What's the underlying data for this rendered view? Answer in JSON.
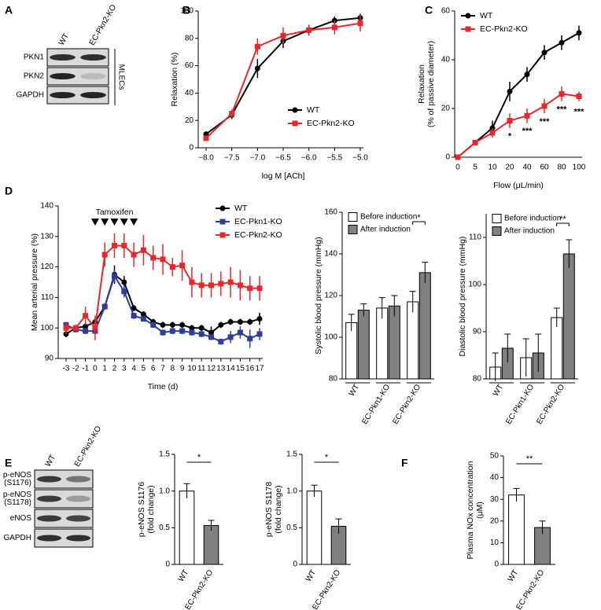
{
  "chart_data": [
    {
      "panel": "B",
      "type": "line",
      "ylabel": "Relaxation (%)",
      "xlabel": "log M [ACh]",
      "x": [
        -8,
        -7.5,
        -7,
        -6.5,
        -6,
        -5.5,
        -5
      ],
      "xlim": [
        -8,
        -5
      ],
      "xticks": [
        {
          "value": -8,
          "label": "−8.0"
        },
        {
          "value": -7.5,
          "label": "−7.5"
        },
        {
          "value": -7,
          "label": "−7.0"
        },
        {
          "value": -6.5,
          "label": "−6.5"
        },
        {
          "value": -6,
          "label": "−6.0"
        },
        {
          "value": -5.5,
          "label": "−5.5"
        },
        {
          "value": -5,
          "label": "−5.0"
        }
      ],
      "ylim": [
        0,
        100
      ],
      "yticks": [
        0,
        20,
        40,
        60,
        80,
        100
      ],
      "legend_loc": "lower right",
      "series": [
        {
          "name": "WT",
          "color": "#000000",
          "marker": "circle",
          "values": [
            10,
            24,
            58,
            78,
            86,
            93,
            95
          ],
          "errors": [
            1,
            3,
            7,
            5,
            4,
            3,
            3
          ]
        },
        {
          "name": "EC-Pkn2-KO",
          "color": "#e8262b",
          "marker": "square",
          "values": [
            7,
            25,
            74,
            82,
            86,
            88,
            91
          ],
          "errors": [
            2,
            3,
            6,
            6,
            4,
            5,
            6
          ]
        }
      ]
    },
    {
      "panel": "C",
      "type": "line",
      "ylabel": [
        "Relaxation",
        "(% of passive diameter)"
      ],
      "xlabel": "Flow (μL/min)",
      "categories": [
        "0",
        "5",
        "10",
        "20",
        "40",
        "60",
        "80",
        "100"
      ],
      "ylim": [
        0,
        60
      ],
      "yticks": [
        0,
        20,
        40,
        60
      ],
      "legend_loc": "upper left",
      "star_labels": [
        null,
        null,
        null,
        "*",
        "***",
        "***",
        "***",
        "***"
      ],
      "series": [
        {
          "name": "WT",
          "color": "#000000",
          "marker": "circle",
          "values": [
            0,
            6,
            12,
            27,
            34,
            43,
            47,
            51
          ],
          "errors": [
            0,
            1,
            3,
            4,
            3,
            3,
            3,
            3
          ]
        },
        {
          "name": "EC-Pkn2-KO",
          "color": "#e8262b",
          "marker": "square",
          "values": [
            0,
            6,
            10,
            15,
            17,
            21,
            26,
            25
          ],
          "errors": [
            0,
            1,
            2,
            3,
            3,
            3,
            3,
            2
          ]
        }
      ]
    },
    {
      "panel": "D",
      "type": "line",
      "ylabel": "Mean arterial pressure (%)",
      "xlabel": "Time (d)",
      "x": [
        -3,
        -2,
        -1,
        0,
        1,
        2,
        3,
        4,
        5,
        6,
        7,
        8,
        9,
        10,
        11,
        12,
        13,
        14,
        15,
        16,
        17
      ],
      "xlim": [
        -3,
        17
      ],
      "xticks": [
        -3,
        -2,
        -1,
        0,
        1,
        2,
        3,
        4,
        5,
        6,
        7,
        8,
        9,
        10,
        11,
        12,
        13,
        14,
        15,
        16,
        17
      ],
      "ylim": [
        90,
        140
      ],
      "yticks": [
        90,
        100,
        110,
        120,
        130,
        140
      ],
      "legend_loc": "upper right",
      "annotation": {
        "text": "Tamoxifen",
        "x": [
          0,
          1,
          2,
          3,
          4
        ]
      },
      "series": [
        {
          "name": "WT",
          "color": "#000000",
          "marker": "circle",
          "values": [
            98,
            100,
            100.5,
            102,
            107,
            117.5,
            115,
            106.5,
            104.5,
            102,
            101,
            101,
            101,
            100,
            100,
            98.5,
            101,
            102,
            102,
            102,
            103
          ],
          "errors": [
            1,
            1,
            1,
            1,
            1,
            3,
            2,
            1,
            1,
            1,
            1,
            1,
            1,
            1,
            1,
            2,
            1,
            1,
            1,
            1,
            2
          ]
        },
        {
          "name": "EC-Pkn1-KO",
          "color": "#2e3d9c",
          "marker": "square",
          "values": [
            101,
            99.5,
            99,
            99,
            107,
            117,
            112,
            104,
            103,
            101,
            98.5,
            99,
            99,
            98.5,
            98,
            97,
            95.5,
            97,
            98.5,
            96.5,
            98
          ],
          "errors": [
            1,
            1,
            1,
            1,
            1,
            2,
            2,
            1,
            1,
            1,
            1,
            1,
            1,
            1,
            1,
            1,
            1,
            2,
            2,
            3,
            2
          ]
        },
        {
          "name": "EC-Pkn2-KO",
          "color": "#e8262b",
          "marker": "square",
          "values": [
            100,
            100,
            104,
            100,
            124,
            127,
            127,
            124,
            125.5,
            123,
            122.5,
            120,
            120.5,
            115,
            114,
            114,
            114.5,
            115,
            114,
            113,
            113
          ],
          "errors": [
            2,
            1,
            3,
            4,
            4,
            4,
            4,
            4,
            5,
            4,
            5,
            3,
            5,
            5,
            4,
            4,
            4,
            5,
            5,
            4,
            4
          ]
        }
      ]
    },
    {
      "type": "bar",
      "ylabel": "Systolic blood pressure (mmHg)",
      "categories": [
        "WT",
        "EC-Pkn1-KO",
        "EC-Pkn2-KO"
      ],
      "ylim": [
        80,
        160
      ],
      "yticks": [
        80,
        100,
        120,
        140,
        160
      ],
      "legend_loc": "upper left",
      "significance": [
        null,
        null,
        "*"
      ],
      "series": [
        {
          "name": "Before induction",
          "color": "#ffffff",
          "values": [
            107,
            114,
            117
          ],
          "errors": [
            4,
            5,
            5
          ]
        },
        {
          "name": "After induction",
          "color": "#808080",
          "values": [
            113,
            115,
            131
          ],
          "errors": [
            3,
            5,
            5
          ]
        }
      ]
    },
    {
      "type": "bar",
      "ylabel": "Diastolic blood pressure (mmHg)",
      "categories": [
        "WT",
        "EC-Pkn1-KO",
        "EC-Pkn2-KO"
      ],
      "ylim": [
        80,
        115
      ],
      "yticks": [
        80,
        90,
        100,
        110
      ],
      "legend_loc": "upper left",
      "significance": [
        null,
        null,
        "**"
      ],
      "series": [
        {
          "name": "Before induction",
          "color": "#ffffff",
          "values": [
            82.5,
            84.5,
            93
          ],
          "errors": [
            3,
            4,
            2
          ]
        },
        {
          "name": "After induction",
          "color": "#808080",
          "values": [
            86.5,
            85.5,
            106.5
          ],
          "errors": [
            3,
            4,
            3
          ]
        }
      ]
    },
    {
      "type": "bar",
      "ylabel": [
        "p-eNOS S1176",
        "(fold change)"
      ],
      "categories": [
        "WT",
        "EC-Pkn2-KO"
      ],
      "values": [
        1.0,
        0.53
      ],
      "errors": [
        0.1,
        0.07
      ],
      "colors": [
        "#ffffff",
        "#808080"
      ],
      "ylim": [
        0,
        1.5
      ],
      "yticks": [
        0,
        0.5,
        {
          "value": 1,
          "label": "1.0"
        },
        1.5
      ],
      "significance": "*"
    },
    {
      "type": "bar",
      "ylabel": [
        "p-eNOS S1178",
        "(fold change)"
      ],
      "categories": [
        "WT",
        "EC-Pkn2-KO"
      ],
      "values": [
        1.0,
        0.52
      ],
      "errors": [
        0.08,
        0.1
      ],
      "colors": [
        "#ffffff",
        "#808080"
      ],
      "ylim": [
        0,
        1.5
      ],
      "yticks": [
        0,
        0.5,
        {
          "value": 1,
          "label": "1.0"
        },
        1.5
      ],
      "significance": "*"
    },
    {
      "panel": "F",
      "type": "bar",
      "ylabel": [
        "Plasma NOx concentration",
        "(μM)"
      ],
      "categories": [
        "WT",
        "EC-Pkn2-KO"
      ],
      "values": [
        32,
        17
      ],
      "errors": [
        3,
        3
      ],
      "colors": [
        "#ffffff",
        "#808080"
      ],
      "ylim": [
        0,
        50
      ],
      "yticks": [
        0,
        10,
        20,
        30,
        40,
        50
      ],
      "significance": "**"
    }
  ],
  "blots": [
    {
      "panel": "A",
      "lanes": [
        "WT",
        "EC-Pkn2-KO"
      ],
      "rows": [
        [
          "PKN1"
        ],
        [
          "PKN2"
        ],
        [
          "GAPDH"
        ]
      ],
      "side_label": "MLECs"
    },
    {
      "panel": "E",
      "lanes": [
        "WT",
        "EC-Pkn2-KO"
      ],
      "rows": [
        [
          "p-eNOS",
          "(S1176)"
        ],
        [
          "p-eNOS",
          "(S1178)"
        ],
        [
          "eNOS"
        ],
        [
          "GAPDH"
        ]
      ]
    }
  ]
}
